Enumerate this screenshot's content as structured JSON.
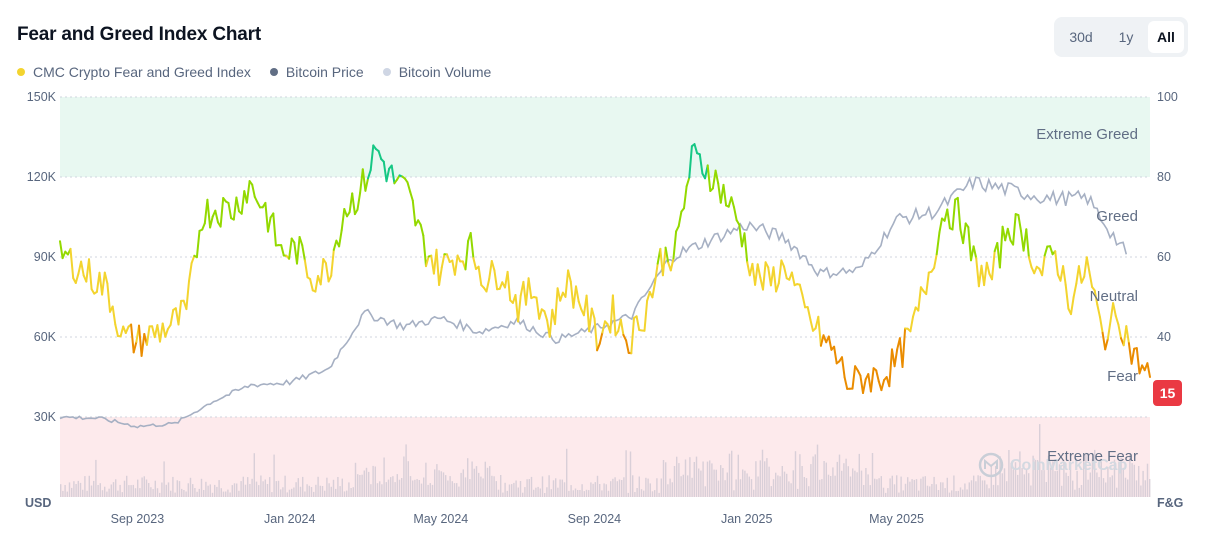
{
  "header": {
    "title": "Fear and Greed Index Chart",
    "range_options": [
      "30d",
      "1y",
      "All"
    ],
    "selected_range": "All"
  },
  "watermark": "CoinMarketCap",
  "colors": {
    "extreme_greed": "#16c784",
    "greed": "#93d900",
    "neutral": "#f3d42f",
    "fear": "#ea8c00",
    "extreme_fear": "#ea3943",
    "price_line": "#a6b0c3",
    "volume": "#cfc8d3"
  },
  "chart_data": {
    "type": "line",
    "title": "Fear and Greed Index Chart",
    "legend": [
      {
        "name": "CMC Crypto Fear and Greed Index",
        "color": "#f3d42f"
      },
      {
        "name": "Bitcoin Price",
        "color": "#616e85"
      },
      {
        "name": "Bitcoin Volume",
        "color": "#cfd6e4"
      }
    ],
    "legend_position": "top-left",
    "x_ticks": [
      "Sep 2023",
      "Jan 2024",
      "May 2024",
      "Sep 2024",
      "Jan 2025",
      "May 2025"
    ],
    "y_left": {
      "unit_label": "USD",
      "ticks": [
        "30K",
        "60K",
        "90K",
        "120K",
        "150K"
      ],
      "range": [
        0,
        150000
      ]
    },
    "y_right": {
      "unit_label": "F&G",
      "ticks": [
        "100",
        "80",
        "60",
        "40"
      ],
      "range": [
        0,
        100
      ]
    },
    "zones": [
      {
        "label": "Extreme Greed",
        "from": 80,
        "to": 100
      },
      {
        "label": "Greed",
        "from": 60,
        "to": 80
      },
      {
        "label": "Neutral",
        "from": 40,
        "to": 60
      },
      {
        "label": "Fear",
        "from": 20,
        "to": 40
      },
      {
        "label": "Extreme Fear",
        "from": 0,
        "to": 20
      }
    ],
    "current_value": "15",
    "fear_greed_series": {
      "name": "CMC Crypto Fear and Greed Index",
      "x": [
        "2023-07",
        "2023-07",
        "2023-08",
        "2023-08",
        "2023-08",
        "2023-09",
        "2023-09",
        "2023-10",
        "2023-10",
        "2023-10",
        "2023-11",
        "2023-11",
        "2023-12",
        "2023-12",
        "2023-12",
        "2024-01",
        "2024-01",
        "2024-01",
        "2024-02",
        "2024-02",
        "2024-03",
        "2024-03",
        "2024-03",
        "2024-04",
        "2024-04",
        "2024-05",
        "2024-05",
        "2024-05",
        "2024-06",
        "2024-06",
        "2024-07",
        "2024-07",
        "2024-08",
        "2024-08",
        "2024-08",
        "2024-09",
        "2024-09",
        "2024-10",
        "2024-10",
        "2024-10",
        "2024-11",
        "2024-11",
        "2024-12",
        "2024-12",
        "2024-12",
        "2025-01",
        "2025-01",
        "2025-02",
        "2025-02",
        "2025-02",
        "2025-03",
        "2025-03",
        "2025-04",
        "2025-04",
        "2025-04",
        "2025-05",
        "2025-05",
        "2025-06",
        "2025-06",
        "2025-06",
        "2025-07",
        "2025-07",
        "2025-08",
        "2025-08",
        "2025-09",
        "2025-09",
        "2025-10",
        "2025-10",
        "2025-11",
        "2025-11"
      ],
      "values": [
        61,
        58,
        55,
        52,
        40,
        39,
        41,
        43,
        46,
        71,
        72,
        72,
        78,
        72,
        61,
        62,
        55,
        57,
        72,
        76,
        87,
        80,
        76,
        63,
        57,
        60,
        62,
        54,
        57,
        48,
        52,
        43,
        54,
        49,
        40,
        46,
        39,
        46,
        59,
        62,
        85,
        82,
        76,
        68,
        55,
        54,
        58,
        47,
        41,
        36,
        28,
        30,
        30,
        34,
        42,
        56,
        72,
        70,
        57,
        55,
        68,
        66,
        56,
        61,
        49,
        58,
        40,
        46,
        35,
        30
      ],
      "y_range": [
        0,
        100
      ]
    },
    "price_series": {
      "name": "Bitcoin Price",
      "x": [
        "2023-07",
        "2023-08",
        "2023-09",
        "2023-10",
        "2023-11",
        "2023-12",
        "2024-01",
        "2024-02",
        "2024-03",
        "2024-04",
        "2024-05",
        "2024-06",
        "2024-07",
        "2024-08",
        "2024-09",
        "2024-10",
        "2024-11",
        "2024-12",
        "2025-01",
        "2025-02",
        "2025-03",
        "2025-04",
        "2025-05",
        "2025-06",
        "2025-07",
        "2025-08",
        "2025-09",
        "2025-10",
        "2025-11"
      ],
      "values": [
        30000,
        29500,
        26500,
        27500,
        36000,
        42000,
        43000,
        48000,
        69000,
        64000,
        67000,
        62000,
        66000,
        59000,
        63000,
        68000,
        90000,
        96000,
        102000,
        97000,
        84000,
        85000,
        104000,
        107000,
        118000,
        115000,
        112000,
        112000,
        91000
      ],
      "y_range": [
        0,
        150000
      ]
    },
    "volume_series": {
      "name": "Bitcoin Volume"
    }
  }
}
